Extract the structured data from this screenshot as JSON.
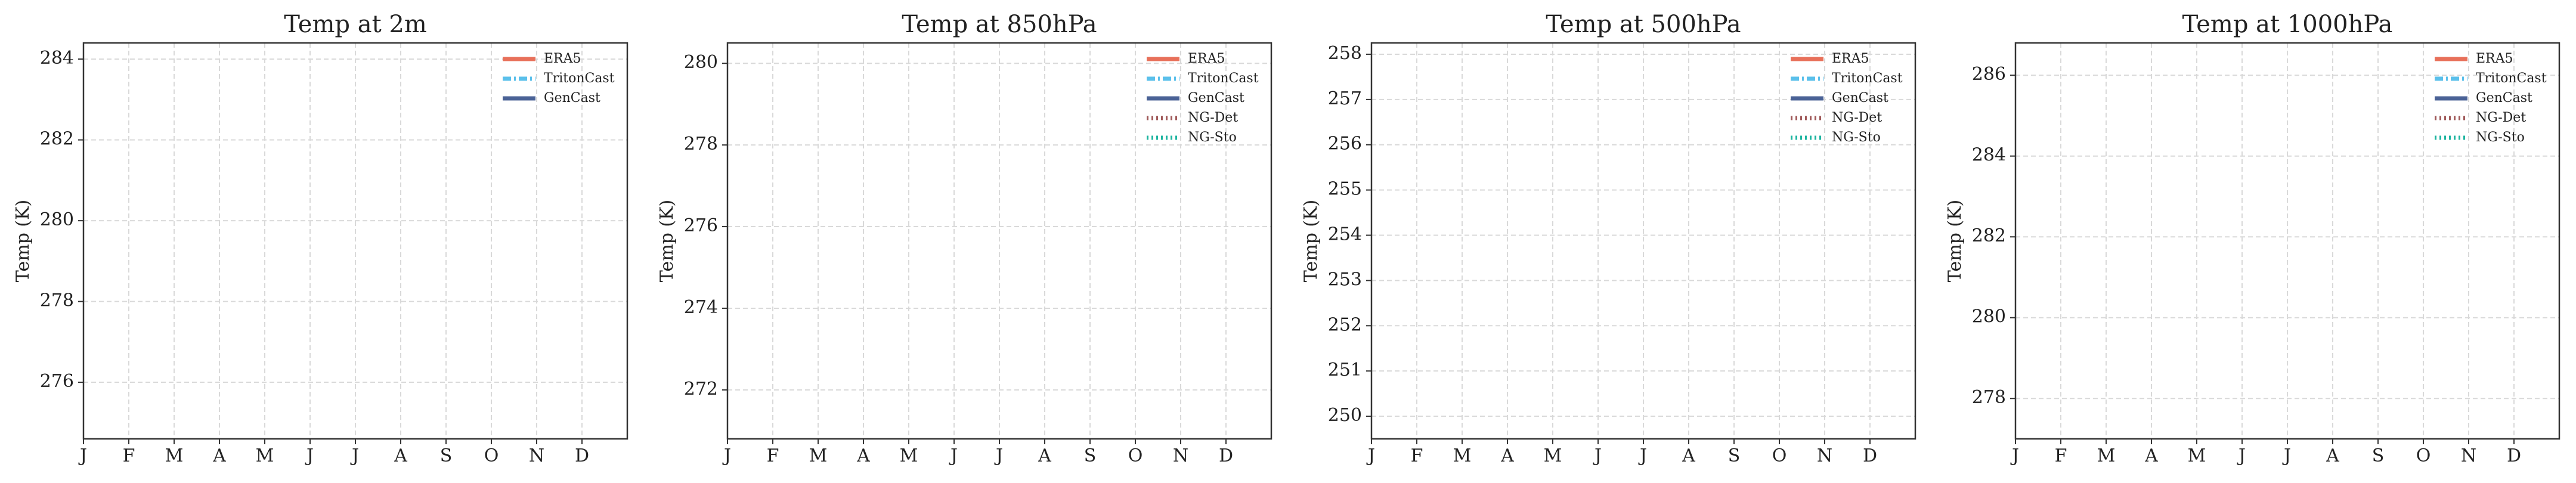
{
  "chart_data": [
    {
      "type": "line",
      "title": "Temp at 2m",
      "y_label": "Temp (K)",
      "categories": [
        "J",
        "F",
        "M",
        "A",
        "M",
        "J",
        "J",
        "A",
        "S",
        "O",
        "N",
        "D"
      ],
      "series": [
        {
          "name": "ERA5",
          "color": "#e8705a",
          "linestyle": "solid",
          "values": [
            null,
            null,
            null,
            null,
            null,
            null,
            null,
            null,
            null,
            null,
            null,
            null
          ]
        },
        {
          "name": "TritonCast",
          "color": "#5bc0eb",
          "linestyle": "dashdot",
          "values": [
            null,
            null,
            null,
            null,
            null,
            null,
            null,
            null,
            null,
            null,
            null,
            null
          ]
        },
        {
          "name": "GenCast",
          "color": "#4a6296",
          "linestyle": "solid",
          "values": [
            null,
            null,
            null,
            null,
            null,
            null,
            null,
            null,
            null,
            null,
            null,
            null
          ]
        }
      ],
      "ylim": [
        274.6,
        284.4
      ],
      "yticks": [
        276,
        278,
        280,
        282,
        284
      ],
      "grid": true,
      "legend": "upper right"
    },
    {
      "type": "line",
      "title": "Temp at 850hPa",
      "y_label": "Temp (K)",
      "categories": [
        "J",
        "F",
        "M",
        "A",
        "M",
        "J",
        "J",
        "A",
        "S",
        "O",
        "N",
        "D"
      ],
      "series": [
        {
          "name": "ERA5",
          "color": "#e8705a",
          "linestyle": "solid",
          "values": [
            null,
            null,
            null,
            null,
            null,
            null,
            null,
            null,
            null,
            null,
            null,
            null
          ]
        },
        {
          "name": "TritonCast",
          "color": "#5bc0eb",
          "linestyle": "dashdot",
          "values": [
            null,
            null,
            null,
            null,
            null,
            null,
            null,
            null,
            null,
            null,
            null,
            null
          ]
        },
        {
          "name": "GenCast",
          "color": "#4a6296",
          "linestyle": "solid",
          "values": [
            null,
            null,
            null,
            null,
            null,
            null,
            null,
            null,
            null,
            null,
            null,
            null
          ]
        },
        {
          "name": "NG-Det",
          "color": "#a05a5a",
          "linestyle": "dotted",
          "values": [
            null,
            null,
            null,
            null,
            null,
            null,
            null,
            null,
            null,
            null,
            null,
            null
          ]
        },
        {
          "name": "NG-Sto",
          "color": "#1fb5a0",
          "linestyle": "dotted",
          "values": [
            null,
            null,
            null,
            null,
            null,
            null,
            null,
            null,
            null,
            null,
            null,
            null
          ]
        }
      ],
      "ylim": [
        270.8,
        280.5
      ],
      "yticks": [
        272,
        274,
        276,
        278,
        280
      ],
      "grid": true,
      "legend": "upper right"
    },
    {
      "type": "line",
      "title": "Temp at 500hPa",
      "y_label": "Temp (K)",
      "categories": [
        "J",
        "F",
        "M",
        "A",
        "M",
        "J",
        "J",
        "A",
        "S",
        "O",
        "N",
        "D"
      ],
      "series": [
        {
          "name": "ERA5",
          "color": "#e8705a",
          "linestyle": "solid",
          "values": [
            null,
            null,
            null,
            null,
            null,
            null,
            null,
            null,
            null,
            null,
            null,
            null
          ]
        },
        {
          "name": "TritonCast",
          "color": "#5bc0eb",
          "linestyle": "dashdot",
          "values": [
            null,
            null,
            null,
            null,
            null,
            null,
            null,
            null,
            null,
            null,
            null,
            null
          ]
        },
        {
          "name": "GenCast",
          "color": "#4a6296",
          "linestyle": "solid",
          "values": [
            null,
            null,
            null,
            null,
            null,
            null,
            null,
            null,
            null,
            null,
            null,
            null
          ]
        },
        {
          "name": "NG-Det",
          "color": "#a05a5a",
          "linestyle": "dotted",
          "values": [
            null,
            null,
            null,
            null,
            null,
            null,
            null,
            null,
            null,
            null,
            null,
            null
          ]
        },
        {
          "name": "NG-Sto",
          "color": "#1fb5a0",
          "linestyle": "dotted",
          "values": [
            null,
            null,
            null,
            null,
            null,
            null,
            null,
            null,
            null,
            null,
            null,
            null
          ]
        }
      ],
      "ylim": [
        249.5,
        258.25
      ],
      "yticks": [
        250,
        251,
        252,
        253,
        254,
        255,
        256,
        257,
        258
      ],
      "grid": true,
      "legend": "upper right"
    },
    {
      "type": "line",
      "title": "Temp at 1000hPa",
      "y_label": "Temp (K)",
      "categories": [
        "J",
        "F",
        "M",
        "A",
        "M",
        "J",
        "J",
        "A",
        "S",
        "O",
        "N",
        "D"
      ],
      "series": [
        {
          "name": "ERA5",
          "color": "#e8705a",
          "linestyle": "solid",
          "values": [
            null,
            null,
            null,
            null,
            null,
            null,
            null,
            null,
            null,
            null,
            null,
            null
          ]
        },
        {
          "name": "TritonCast",
          "color": "#5bc0eb",
          "linestyle": "dashdot",
          "values": [
            null,
            null,
            null,
            null,
            null,
            null,
            null,
            null,
            null,
            null,
            null,
            null
          ]
        },
        {
          "name": "GenCast",
          "color": "#4a6296",
          "linestyle": "solid",
          "values": [
            null,
            null,
            null,
            null,
            null,
            null,
            null,
            null,
            null,
            null,
            null,
            null
          ]
        },
        {
          "name": "NG-Det",
          "color": "#a05a5a",
          "linestyle": "dotted",
          "values": [
            null,
            null,
            null,
            null,
            null,
            null,
            null,
            null,
            null,
            null,
            null,
            null
          ]
        },
        {
          "name": "NG-Sto",
          "color": "#1fb5a0",
          "linestyle": "dotted",
          "values": [
            null,
            null,
            null,
            null,
            null,
            null,
            null,
            null,
            null,
            null,
            null,
            null
          ]
        }
      ],
      "ylim": [
        277,
        286.8
      ],
      "yticks": [
        278,
        280,
        282,
        284,
        286
      ],
      "grid": true,
      "legend": "upper right"
    }
  ]
}
